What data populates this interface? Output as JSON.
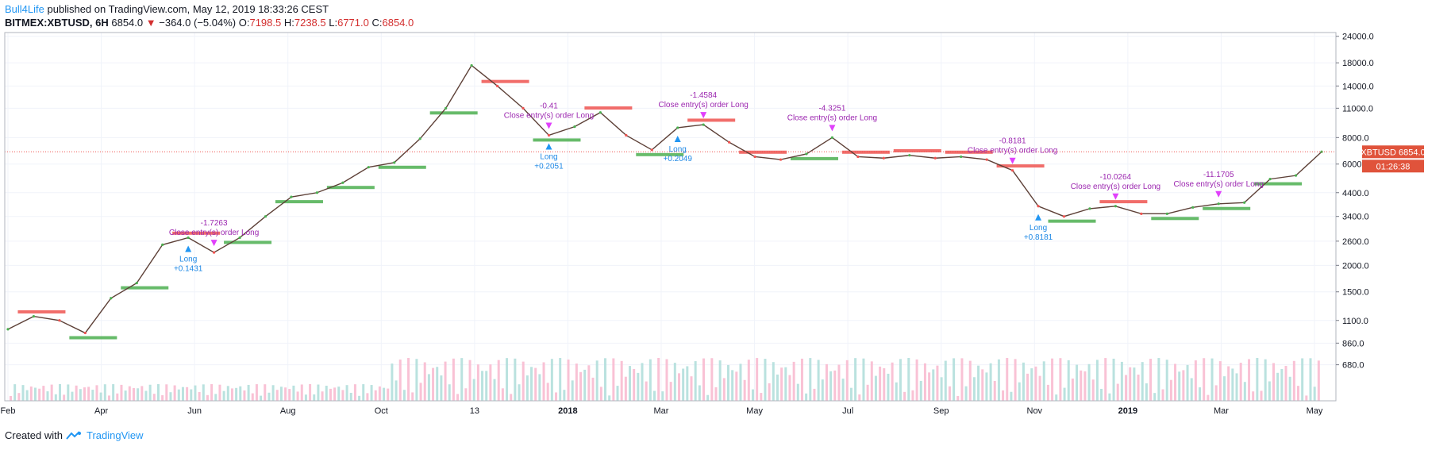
{
  "header": {
    "author": "Bull4Life",
    "published_text": "published on TradingView.com, May 12, 2019 18:33:26 CEST",
    "symbol": "BITMEX:XBTUSD, 6H",
    "last": "6854.0",
    "change": "−364.0 (−5.04%)",
    "o_label": "O:",
    "o_value": "7198.5",
    "h_label": "H:",
    "h_value": "7238.5",
    "l_label": "L:",
    "l_value": "6771.0",
    "c_label": "C:",
    "c_value": "6854.0"
  },
  "footer": {
    "created_with": "Created with",
    "brand": "TradingView"
  },
  "colors": {
    "up": "#4caf50",
    "down": "#ef5350",
    "signal_up": "#2196f3",
    "signal_down": "#e040fb",
    "price_badge": "#e0533b"
  },
  "chart_data": {
    "type": "line",
    "scale": "log",
    "ylim": [
      460,
      25000
    ],
    "y_ticks": [
      "24000.0",
      "18000.0",
      "14000.0",
      "11000.0",
      "8000.0",
      "6000.0",
      "4400.0",
      "3400.0",
      "2600.0",
      "2000.0",
      "1500.0",
      "1100.0",
      "860.0",
      "680.0"
    ],
    "x_ticks": [
      "Feb",
      "Apr",
      "Jun",
      "Aug",
      "Oct",
      "13",
      "2018",
      "Mar",
      "May",
      "Jul",
      "Sep",
      "Nov",
      "2019",
      "Mar",
      "May"
    ],
    "x": [
      "2017-02",
      "2017-03",
      "2017-04",
      "2017-05",
      "2017-05b",
      "2017-06",
      "2017-06b",
      "2017-07",
      "2017-07b",
      "2017-08",
      "2017-08b",
      "2017-09",
      "2017-09b",
      "2017-10",
      "2017-10b",
      "2017-11",
      "2017-11b",
      "2017-12",
      "2017-12b",
      "2018-01",
      "2018-01b",
      "2018-02",
      "2018-02b",
      "2018-03",
      "2018-03b",
      "2018-04",
      "2018-04b",
      "2018-05",
      "2018-05b",
      "2018-06",
      "2018-06b",
      "2018-07",
      "2018-07b",
      "2018-08",
      "2018-08b",
      "2018-09",
      "2018-09b",
      "2018-10",
      "2018-10b",
      "2018-11",
      "2018-11b",
      "2018-12",
      "2018-12b",
      "2019-01",
      "2019-01b",
      "2019-02",
      "2019-02b",
      "2019-03",
      "2019-03b",
      "2019-04",
      "2019-04b",
      "2019-05"
    ],
    "close": [
      1000,
      1150,
      1100,
      960,
      1400,
      1650,
      2500,
      2700,
      2300,
      2700,
      3400,
      4200,
      4400,
      4900,
      5800,
      6100,
      7900,
      11000,
      17500,
      14000,
      11000,
      8200,
      9000,
      10500,
      8200,
      7000,
      8900,
      9200,
      7600,
      6500,
      6300,
      6700,
      8000,
      6500,
      6400,
      6600,
      6400,
      6500,
      6300,
      5600,
      3800,
      3400,
      3700,
      3800,
      3500,
      3500,
      3750,
      3900,
      3950,
      5100,
      5300,
      6854
    ],
    "signals": [
      {
        "label": "-1.7263",
        "text": "Close entry(s) order Long"
      },
      {
        "label": "-0.41",
        "text": "Close entry(s) order Long"
      },
      {
        "label": "-1.4584",
        "text": "Close entry(s) order Long"
      },
      {
        "label": "-4.3251",
        "text": "Close entry(s) order Long"
      },
      {
        "label": "-0.8181",
        "text": "Close entry(s) order Long"
      },
      {
        "label": "-10.0264",
        "text": "Close entry(s) order Long"
      },
      {
        "label": "-11.1705",
        "text": "Close entry(s) order Long"
      }
    ],
    "long_labels": [
      {
        "label": "Long",
        "value": "+0.1431"
      },
      {
        "label": "Long",
        "value": "+0.2051"
      },
      {
        "label": "Long",
        "value": "+0.2049"
      },
      {
        "label": "Long",
        "value": "+0.8181"
      }
    ],
    "price_label": {
      "symbol": "XBTUSD",
      "value": "6854.0",
      "countdown": "01:26:38"
    }
  }
}
